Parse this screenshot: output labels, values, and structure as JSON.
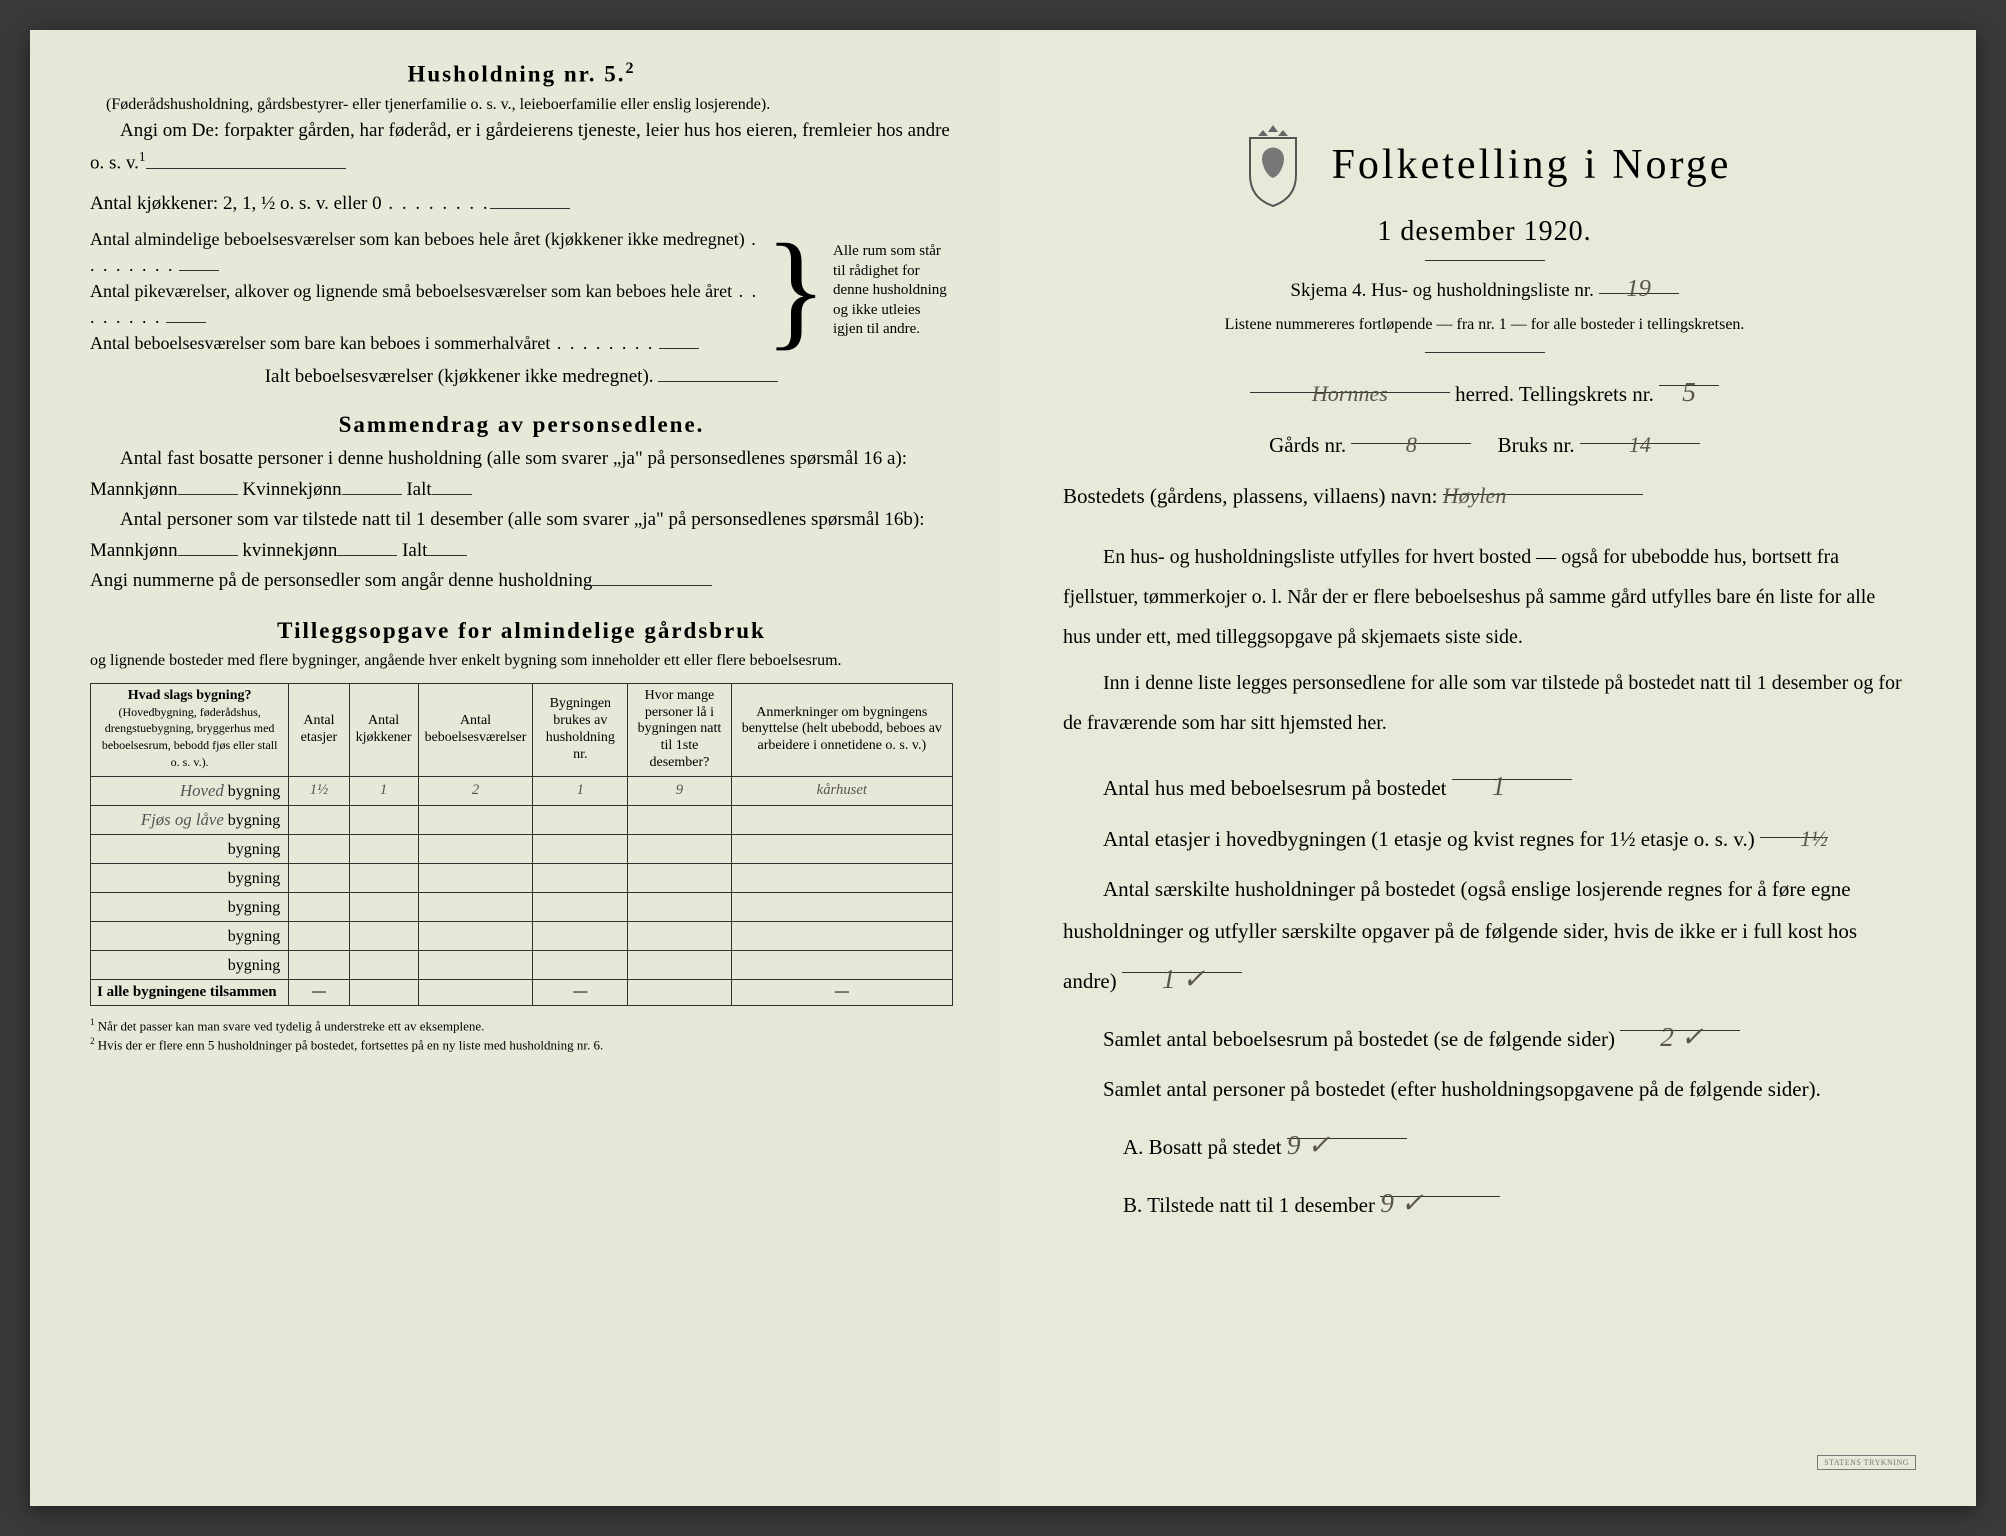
{
  "left": {
    "title": "Husholdning nr. 5.",
    "title_sup": "2",
    "paren": "(Føderådshusholdning, gårdsbestyrer- eller tjenerfamilie o. s. v., leieboerfamilie eller enslig losjerende).",
    "angi": "Angi om De: forpakter gården, har føderåd, er i gårdeierens tjeneste, leier hus hos eieren, fremleier hos andre o. s. v.",
    "sup1": "1",
    "antal_kjokken": "Antal kjøkkener: 2, 1, ½ o. s. v. eller 0",
    "brace_l1": "Antal almindelige beboelsesværelser som kan beboes hele året (kjøkkener ikke medregnet)",
    "brace_l2": "Antal pikeværelser, alkover og lignende små beboelsesværelser som kan beboes hele året",
    "brace_l3": "Antal beboelsesværelser som bare kan beboes i sommerhalvåret",
    "brace_right": "Alle rum som står til rådighet for denne husholdning og ikke utleies igjen til andre.",
    "ialt": "Ialt beboelsesværelser (kjøkkener ikke medregnet).",
    "sammendrag_title": "Sammendrag av personsedlene.",
    "sammen1": "Antal fast bosatte personer i denne husholdning (alle som svarer „ja\" på personsedlenes spørsmål 16 a): Mannkjønn",
    "kvinnekjonn": "Kvinnekjønn",
    "ialt_label": "Ialt",
    "sammen2": "Antal personer som var tilstede natt til 1 desember (alle som svarer „ja\" på personsedlenes spørsmål 16b): Mannkjønn",
    "kvinnekjonn2": "kvinnekjønn",
    "angi_num": "Angi nummerne på de personsedler som angår denne husholdning",
    "tillegg_title": "Tilleggsopgave for almindelige gårdsbruk",
    "tillegg_sub": "og lignende bosteder med flere bygninger, angående hver enkelt bygning som inneholder ett eller flere beboelsesrum.",
    "th1": "Hvad slags bygning?",
    "th1_sub": "(Hovedbygning, føderådshus, drengstuebygning, bryggerhus med beboelsesrum, bebodd fjøs eller stall o. s. v.).",
    "th2": "Antal etasjer",
    "th3": "Antal kjøkkener",
    "th4": "Antal beboelsesværelser",
    "th5": "Bygningen brukes av husholdning nr.",
    "th6": "Hvor mange personer lå i bygningen natt til 1ste desember?",
    "th7": "Anmerkninger om bygningens benyttelse (helt ubebodd, beboes av arbeidere i onnetidene o. s. v.)",
    "bygning": "bygning",
    "rows": [
      {
        "label": "Hoved",
        "etasjer": "1½",
        "kjokken": "1",
        "vaer": "2",
        "hushold": "1",
        "pers": "9",
        "anm": "kårhuset"
      },
      {
        "label": "Fjøs og låve",
        "etasjer": "",
        "kjokken": "",
        "vaer": "",
        "hushold": "",
        "pers": "",
        "anm": ""
      },
      {
        "label": "",
        "etasjer": "",
        "kjokken": "",
        "vaer": "",
        "hushold": "",
        "pers": "",
        "anm": ""
      },
      {
        "label": "",
        "etasjer": "",
        "kjokken": "",
        "vaer": "",
        "hushold": "",
        "pers": "",
        "anm": ""
      },
      {
        "label": "",
        "etasjer": "",
        "kjokken": "",
        "vaer": "",
        "hushold": "",
        "pers": "",
        "anm": ""
      },
      {
        "label": "",
        "etasjer": "",
        "kjokken": "",
        "vaer": "",
        "hushold": "",
        "pers": "",
        "anm": ""
      },
      {
        "label": "",
        "etasjer": "",
        "kjokken": "",
        "vaer": "",
        "hushold": "",
        "pers": "",
        "anm": ""
      }
    ],
    "total_label": "I alle bygningene tilsammen",
    "dash": "—",
    "fn1_num": "1",
    "fn1": "Når det passer kan man svare ved tydelig å understreke ett av eksemplene.",
    "fn2_num": "2",
    "fn2": "Hvis der er flere enn 5 husholdninger på bostedet, fortsettes på en ny liste med husholdning nr. 6."
  },
  "right": {
    "main_title": "Folketelling i Norge",
    "sub_title": "1 desember 1920.",
    "skjema_line": "Skjema 4.  Hus- og husholdningsliste nr.",
    "skjema_nr": "19",
    "listene": "Listene nummereres fortløpende — fra nr. 1 — for alle bosteder i tellingskretsen.",
    "herred_hand": "Hornnes",
    "herred_label": "herred.   Tellingskrets nr.",
    "krets_nr": "5",
    "gards_label": "Gårds nr.",
    "gards_nr": "8",
    "bruks_label": "Bruks nr.",
    "bruks_nr": "14",
    "bosted_label": "Bostedets (gårdens, plassens, villaens) navn:",
    "bosted_hand": "Høylen",
    "para1": "En hus- og husholdningsliste utfylles for hvert bosted — også for ubebodde hus, bortsett fra fjellstuer, tømmerkojer o. l. Når der er flere beboelseshus på samme gård utfylles bare én liste for alle hus under ett, med tilleggsopgave på skjemaets siste side.",
    "para2": "Inn i denne liste legges personsedlene for alle som var tilstede på bostedet natt til 1 desember og for de fraværende som har sitt hjemsted her.",
    "field1": "Antal hus med beboelsesrum på bostedet",
    "field1_val": "1",
    "field2a": "Antal etasjer i hovedbygningen (1 etasje og kvist regnes for 1½ etasje o. s. v.)",
    "field2_val": "1½",
    "field3": "Antal særskilte husholdninger på bostedet (også enslige losjerende regnes for å føre egne husholdninger og utfyller særskilte opgaver på de følgende sider, hvis de ikke er i full kost hos andre)",
    "field3_val": "1 ✓",
    "field4": "Samlet antal beboelsesrum på bostedet (se de følgende sider)",
    "field4_val": "2 ✓",
    "field5": "Samlet antal personer på bostedet (efter husholdningsopgavene på de følgende sider).",
    "ab_a": "A.  Bosatt på stedet",
    "ab_a_val": "9 ✓",
    "ab_b": "B.  Tilstede natt til 1 desember",
    "ab_b_val": "9 ✓",
    "stamp": "STATENS TRYKNING"
  },
  "colors": {
    "paper": "#e6e8d8",
    "ink": "#222222",
    "handwriting": "#5a5548"
  }
}
